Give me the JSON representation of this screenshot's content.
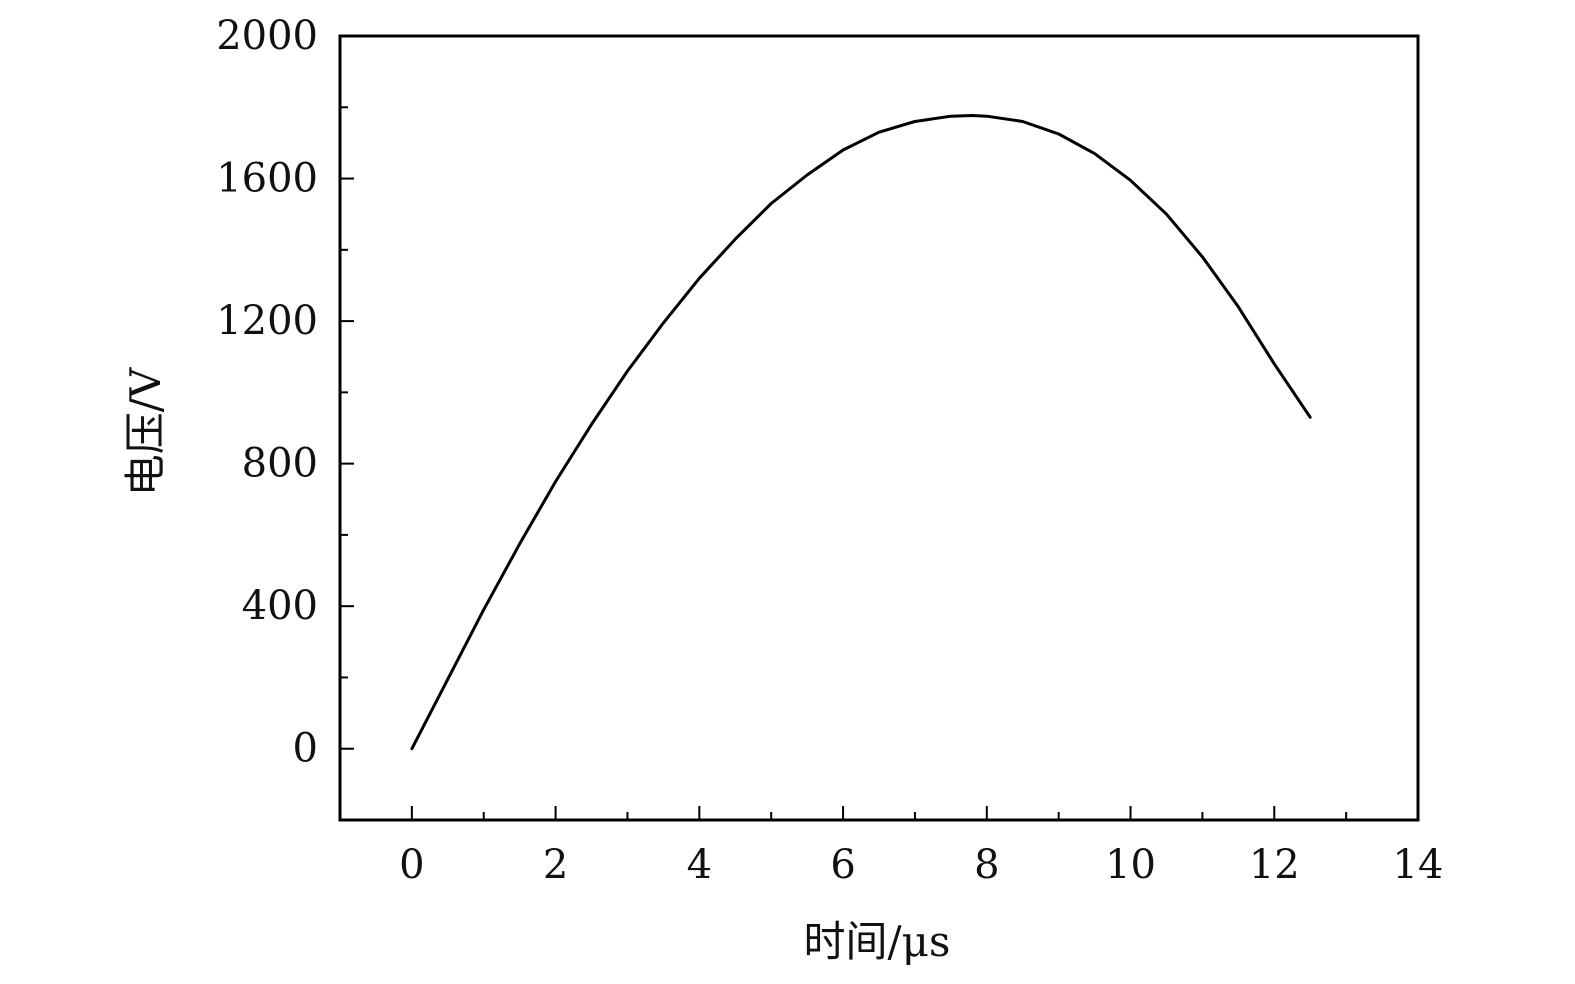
{
  "chart_data": {
    "type": "line",
    "title": "",
    "xlabel": "时间/μs",
    "ylabel": "电压/V",
    "xlim": [
      -1,
      14
    ],
    "ylim": [
      -200,
      2000
    ],
    "xticks": [
      0,
      2,
      4,
      6,
      8,
      10,
      12,
      14
    ],
    "yticks": [
      0,
      400,
      800,
      1200,
      1600,
      2000
    ],
    "x_minor_step": 1,
    "y_minor_step": 200,
    "grid": false,
    "colors": {
      "line": "#000000",
      "axis": "#000000"
    },
    "series": [
      {
        "x": [
          0,
          0.5,
          1,
          1.5,
          2,
          2.5,
          3,
          3.5,
          4,
          4.5,
          5,
          5.5,
          6,
          6.5,
          7,
          7.5,
          7.8,
          8,
          8.5,
          9,
          9.5,
          10,
          10.5,
          11,
          11.5,
          12,
          12.5
        ],
        "y": [
          0,
          195,
          390,
          575,
          750,
          910,
          1060,
          1195,
          1320,
          1430,
          1530,
          1610,
          1680,
          1730,
          1760,
          1775,
          1777,
          1775,
          1760,
          1725,
          1670,
          1595,
          1500,
          1380,
          1240,
          1080,
          930
        ]
      }
    ]
  }
}
